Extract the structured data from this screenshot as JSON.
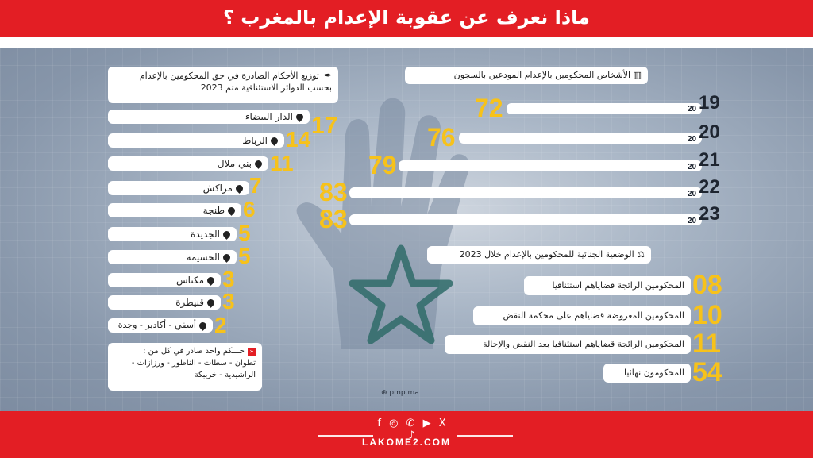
{
  "header": {
    "title": "ماذا نعرف عن عقوبة الإعدام بالمغرب ؟"
  },
  "left_panel": {
    "heading_line1": "توزيع الأحكام الصادرة في حق المحكومين بالإعدام",
    "heading_line2": "بحسب الدوائر الاستئنافية متم 2023",
    "cities": [
      {
        "name": "الدار البيضاء",
        "value": "17"
      },
      {
        "name": "الرباط",
        "value": "14"
      },
      {
        "name": "بني ملال",
        "value": "11"
      },
      {
        "name": "مراكش",
        "value": "7"
      },
      {
        "name": "طنجة",
        "value": "6"
      },
      {
        "name": "الجديدة",
        "value": "5"
      },
      {
        "name": "الحسيمة",
        "value": "5"
      },
      {
        "name": "مكناس",
        "value": "3"
      },
      {
        "name": "قنيطرة",
        "value": "3"
      },
      {
        "name": "أسفي - أكادير - وجدة",
        "value": "2"
      }
    ],
    "note_line1": "حـــكم واحد صادر في كل من :",
    "note_line2": "تطوان - سطات - الناظور - ورزازات -",
    "note_line3": "الراشيدية - خريبكة"
  },
  "right_top": {
    "heading": "الأشخاص المحكومين بالإعدام المودعين بالسجون",
    "years": [
      {
        "prefix": "20",
        "suffix": "19",
        "value": "72"
      },
      {
        "prefix": "20",
        "suffix": "20",
        "value": "76"
      },
      {
        "prefix": "20",
        "suffix": "21",
        "value": "79"
      },
      {
        "prefix": "20",
        "suffix": "22",
        "value": "83"
      },
      {
        "prefix": "20",
        "suffix": "23",
        "value": "83"
      }
    ]
  },
  "right_bottom": {
    "heading": "الوضعية الجنائية للمحكومين بالإعدام خلال 2023",
    "items": [
      {
        "label": "المحكومين الرائجة قضاياهم استئنافيا",
        "value": "08"
      },
      {
        "label": "المحكومين المعروضة قضاياهم على محكمة النقض",
        "value": "10"
      },
      {
        "label": "المحكومين الرائجة قضاياهم استئنافيا بعد النقض والإحالة",
        "value": "11"
      },
      {
        "label": "المحكومون نهائيا",
        "value": "54"
      }
    ]
  },
  "source": "pmp.ma",
  "footer": {
    "social": "f ◎ ✆ ▶ X ♪",
    "brand": "LAKOME2.COM"
  }
}
